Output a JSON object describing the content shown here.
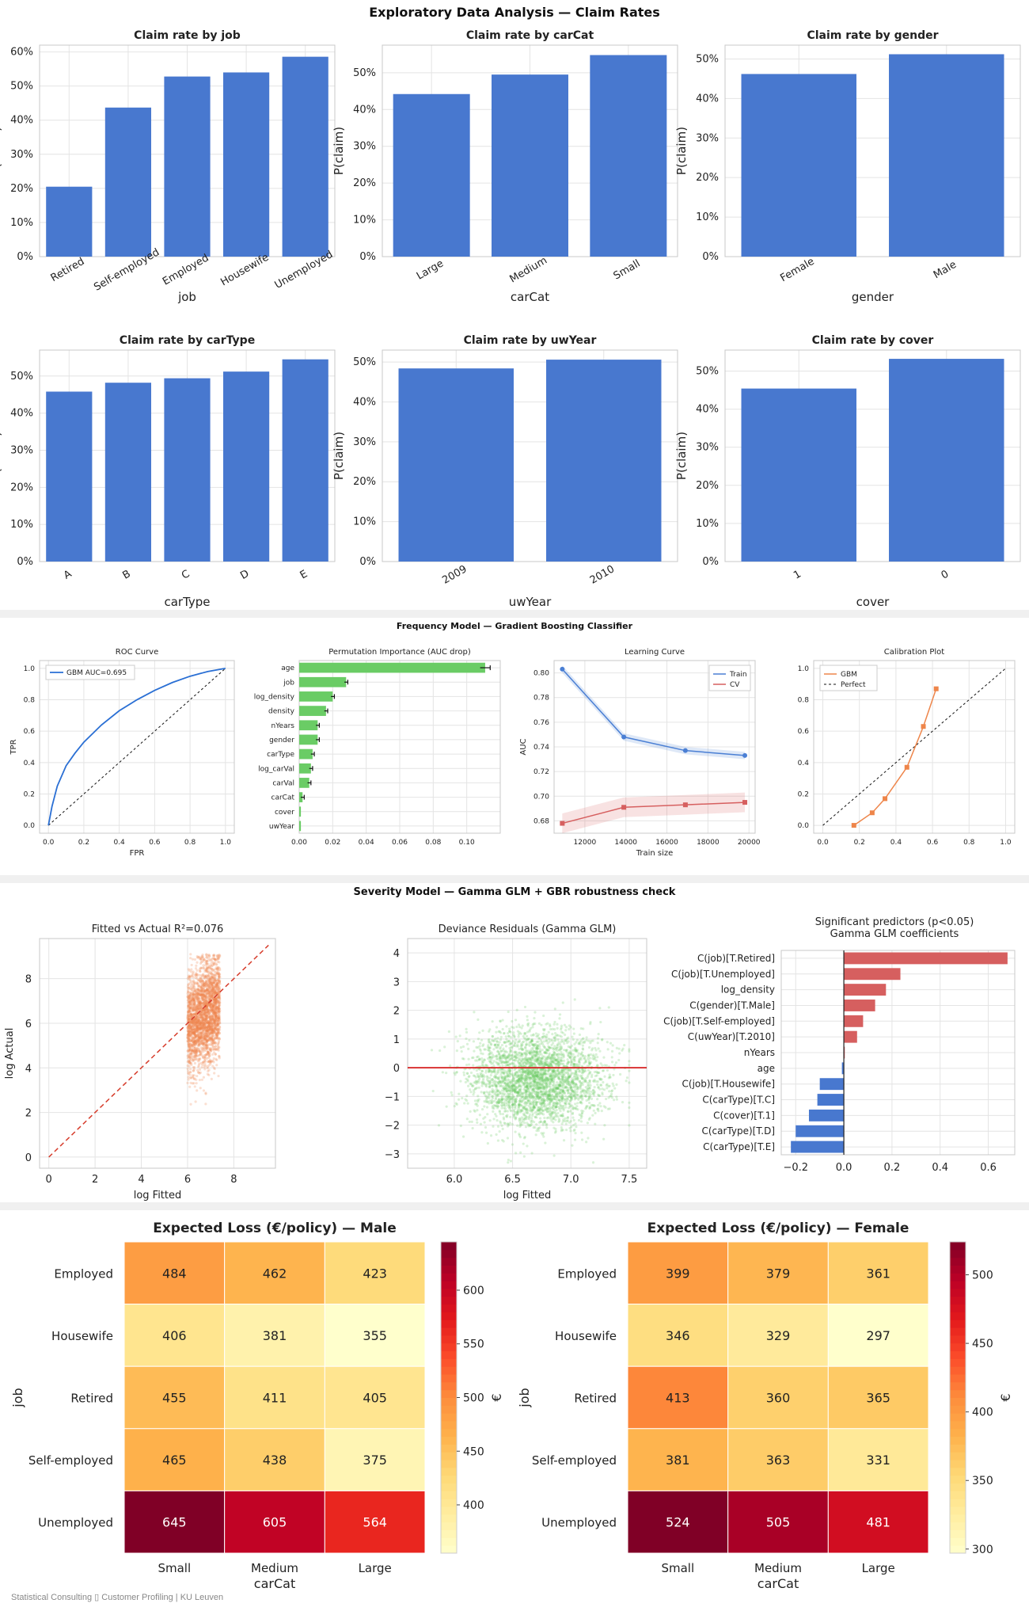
{
  "sections": {
    "eda_title": "Exploratory Data Analysis — Claim Rates",
    "freq_title": "Frequency Model — Gradient Boosting Classifier",
    "sev_title": "Severity Model — Gamma GLM + GBR robustness check"
  },
  "footer": "Statistical Consulting ▯ Customer Profiling | KU Leuven",
  "colors": {
    "bar_blue": "#4878cf",
    "green": "#6acc65",
    "red": "#d65f5f",
    "orange": "#ee854a",
    "roc": "#2a6fd4",
    "section_band": "#f0f0f0"
  },
  "chart_data": [
    {
      "type": "bar",
      "title": "Claim rate by job",
      "xlabel": "job",
      "ylabel": "P(claim)",
      "categories": [
        "Retired",
        "Self-employed",
        "Employed",
        "Housewife",
        "Unemployed"
      ],
      "values": [
        0.205,
        0.437,
        0.528,
        0.54,
        0.586
      ],
      "ylim": [
        0,
        0.62
      ],
      "yticks": [
        0,
        0.1,
        0.2,
        0.3,
        0.4,
        0.5,
        0.6
      ],
      "ytick_labels": [
        "0%",
        "10%",
        "20%",
        "30%",
        "40%",
        "50%",
        "60%"
      ],
      "grid": true
    },
    {
      "type": "bar",
      "title": "Claim rate by carCat",
      "xlabel": "carCat",
      "ylabel": "P(claim)",
      "categories": [
        "Large",
        "Medium",
        "Small"
      ],
      "values": [
        0.442,
        0.495,
        0.548
      ],
      "ylim": [
        0,
        0.575
      ],
      "yticks": [
        0,
        0.1,
        0.2,
        0.3,
        0.4,
        0.5
      ],
      "ytick_labels": [
        "0%",
        "10%",
        "20%",
        "30%",
        "40%",
        "50%"
      ],
      "grid": true
    },
    {
      "type": "bar",
      "title": "Claim rate by gender",
      "xlabel": "gender",
      "ylabel": "P(claim)",
      "categories": [
        "Female",
        "Male"
      ],
      "values": [
        0.462,
        0.512
      ],
      "ylim": [
        0,
        0.535
      ],
      "yticks": [
        0,
        0.1,
        0.2,
        0.3,
        0.4,
        0.5
      ],
      "ytick_labels": [
        "0%",
        "10%",
        "20%",
        "30%",
        "40%",
        "50%"
      ],
      "grid": true
    },
    {
      "type": "bar",
      "title": "Claim rate by carType",
      "xlabel": "carType",
      "ylabel": "P(claim)",
      "categories": [
        "A",
        "B",
        "C",
        "D",
        "E"
      ],
      "values": [
        0.458,
        0.482,
        0.494,
        0.512,
        0.545
      ],
      "ylim": [
        0,
        0.57
      ],
      "yticks": [
        0,
        0.1,
        0.2,
        0.3,
        0.4,
        0.5
      ],
      "ytick_labels": [
        "0%",
        "10%",
        "20%",
        "30%",
        "40%",
        "50%"
      ],
      "grid": true
    },
    {
      "type": "bar",
      "title": "Claim rate by uwYear",
      "xlabel": "uwYear",
      "ylabel": "P(claim)",
      "categories": [
        "2009",
        "2010"
      ],
      "values": [
        0.484,
        0.506
      ],
      "ylim": [
        0,
        0.53
      ],
      "yticks": [
        0,
        0.1,
        0.2,
        0.3,
        0.4,
        0.5
      ],
      "ytick_labels": [
        "0%",
        "10%",
        "20%",
        "30%",
        "40%",
        "50%"
      ],
      "grid": true
    },
    {
      "type": "bar",
      "title": "Claim rate by cover",
      "xlabel": "cover",
      "ylabel": "P(claim)",
      "categories": [
        "1",
        "0"
      ],
      "values": [
        0.454,
        0.532
      ],
      "ylim": [
        0,
        0.555
      ],
      "yticks": [
        0,
        0.1,
        0.2,
        0.3,
        0.4,
        0.5
      ],
      "ytick_labels": [
        "0%",
        "10%",
        "20%",
        "30%",
        "40%",
        "50%"
      ],
      "grid": true
    },
    {
      "type": "line",
      "title": "ROC Curve",
      "xlabel": "FPR",
      "ylabel": "TPR",
      "legend": "top-left",
      "xlim": [
        0,
        1
      ],
      "ylim": [
        0,
        1
      ],
      "ticks": [
        0,
        0.2,
        0.4,
        0.6,
        0.8,
        1.0
      ],
      "tick_labels": [
        "0.0",
        "0.2",
        "0.4",
        "0.6",
        "0.8",
        "1.0"
      ],
      "series": [
        {
          "name": "GBM AUC=0.695",
          "x": [
            0,
            0.02,
            0.05,
            0.1,
            0.15,
            0.2,
            0.3,
            0.4,
            0.5,
            0.6,
            0.7,
            0.8,
            0.9,
            1
          ],
          "y": [
            0,
            0.12,
            0.25,
            0.38,
            0.46,
            0.53,
            0.64,
            0.73,
            0.8,
            0.86,
            0.91,
            0.95,
            0.98,
            1
          ]
        }
      ],
      "reference_line": true
    },
    {
      "type": "bar",
      "orientation": "horizontal",
      "title": "Permutation Importance (AUC drop)",
      "categories": [
        "age",
        "job",
        "log_density",
        "density",
        "nYears",
        "gender",
        "carType",
        "log_carVal",
        "carVal",
        "carCat",
        "cover",
        "uwYear"
      ],
      "values": [
        0.111,
        0.028,
        0.02,
        0.016,
        0.011,
        0.011,
        0.008,
        0.007,
        0.006,
        0.002,
        0.001,
        0.001
      ],
      "errors": [
        0.003,
        0.001,
        0.001,
        0.001,
        0.001,
        0.001,
        0.001,
        0.001,
        0.001,
        0.001,
        0,
        0
      ],
      "xlim": [
        0,
        0.12
      ],
      "ticks": [
        0,
        0.02,
        0.04,
        0.06,
        0.08,
        0.1
      ],
      "tick_labels": [
        "0.00",
        "0.02",
        "0.04",
        "0.06",
        "0.08",
        "0.10"
      ],
      "grid": true
    },
    {
      "type": "line",
      "title": "Learning Curve",
      "xlabel": "Train size",
      "ylabel": "AUC",
      "legend": "top-right",
      "xlim": [
        10500,
        20300
      ],
      "ylim": [
        0.67,
        0.81
      ],
      "xticks": [
        12000,
        14000,
        16000,
        18000,
        20000
      ],
      "yticks": [
        0.68,
        0.7,
        0.72,
        0.74,
        0.76,
        0.78,
        0.8
      ],
      "ytick_labels": [
        "0.68",
        "0.70",
        "0.72",
        "0.74",
        "0.76",
        "0.78",
        "0.80"
      ],
      "series": [
        {
          "name": "Train",
          "x": [
            10900,
            13900,
            16900,
            19800
          ],
          "y": [
            0.803,
            0.748,
            0.737,
            0.733
          ],
          "band": 0.003
        },
        {
          "name": "CV",
          "x": [
            10900,
            13900,
            16900,
            19800
          ],
          "y": [
            0.678,
            0.691,
            0.693,
            0.695
          ],
          "band": 0.008
        }
      ]
    },
    {
      "type": "line",
      "title": "Calibration Plot",
      "legend": "top-left",
      "xlim": [
        -0.05,
        1.05
      ],
      "ylim": [
        -0.05,
        1.05
      ],
      "ticks": [
        0,
        0.2,
        0.4,
        0.6,
        0.8,
        1.0
      ],
      "tick_labels": [
        "0.0",
        "0.2",
        "0.4",
        "0.6",
        "0.8",
        "1.0"
      ],
      "series": [
        {
          "name": "GBM",
          "x": [
            0.17,
            0.27,
            0.34,
            0.46,
            0.55,
            0.62
          ],
          "y": [
            0,
            0.08,
            0.17,
            0.37,
            0.63,
            0.87
          ]
        },
        {
          "name": "Perfect",
          "x": [
            0,
            1
          ],
          "y": [
            0,
            1
          ]
        }
      ]
    },
    {
      "type": "scatter",
      "title": "Fitted vs Actual  R²=0.076",
      "xlabel": "log Fitted",
      "ylabel": "log Actual",
      "xlim": [
        -0.4,
        9.8
      ],
      "ylim": [
        -0.5,
        9.8
      ],
      "xticks": [
        0,
        2,
        4,
        6,
        8
      ],
      "yticks": [
        0,
        2,
        4,
        6,
        8
      ],
      "x_range": [
        6.0,
        7.4
      ],
      "y_mean": 6.35,
      "y_sd": 1.15,
      "reference_line": true
    },
    {
      "type": "scatter",
      "title": "Deviance Residuals (Gamma GLM)",
      "xlabel": "log Fitted",
      "xlim": [
        5.6,
        7.65
      ],
      "ylim": [
        -3.5,
        4.5
      ],
      "xticks": [
        6.0,
        6.5,
        7.0,
        7.5
      ],
      "xtick_labels": [
        "6.0",
        "6.5",
        "7.0",
        "7.5"
      ],
      "yticks": [
        -3,
        -2,
        -1,
        0,
        1,
        2,
        3,
        4
      ],
      "x_mean": 6.7,
      "x_sd": 0.28,
      "y_mean": -0.4,
      "y_sd": 0.85,
      "zero_line": true
    },
    {
      "type": "bar",
      "orientation": "horizontal",
      "title": "Significant predictors (p<0.05)",
      "subtitle": "Gamma GLM coefficients",
      "categories": [
        "C(job)[T.Retired]",
        "C(job)[T.Unemployed]",
        "log_density",
        "C(gender)[T.Male]",
        "C(job)[T.Self-employed]",
        "C(uwYear)[T.2010]",
        "nYears",
        "age",
        "C(job)[T.Housewife]",
        "C(carType)[T.C]",
        "C(cover)[T.1]",
        "C(carType)[T.D]",
        "C(carType)[T.E]"
      ],
      "values": [
        0.68,
        0.235,
        0.175,
        0.13,
        0.08,
        0.055,
        0.004,
        -0.008,
        -0.1,
        -0.11,
        -0.145,
        -0.2,
        -0.22
      ],
      "xlim": [
        -0.26,
        0.71
      ],
      "ticks": [
        -0.2,
        0,
        0.2,
        0.4,
        0.6
      ],
      "tick_labels": [
        "−0.2",
        "0.0",
        "0.2",
        "0.4",
        "0.6"
      ]
    },
    {
      "type": "heatmap",
      "title": "Expected Loss (€/policy) — Male",
      "xlabel": "carCat",
      "ylabel": "job",
      "x": [
        "Small",
        "Medium",
        "Large"
      ],
      "y": [
        "Employed",
        "Housewife",
        "Retired",
        "Self-employed",
        "Unemployed"
      ],
      "values": [
        [
          484,
          462,
          423
        ],
        [
          406,
          381,
          355
        ],
        [
          455,
          411,
          405
        ],
        [
          465,
          438,
          375
        ],
        [
          645,
          605,
          564
        ]
      ],
      "vmin": 355,
      "vmax": 645,
      "colorbar_label": "€",
      "colorbar_ticks": [
        400,
        450,
        500,
        550,
        600
      ]
    },
    {
      "type": "heatmap",
      "title": "Expected Loss (€/policy) — Female",
      "xlabel": "carCat",
      "ylabel": "job",
      "x": [
        "Small",
        "Medium",
        "Large"
      ],
      "y": [
        "Employed",
        "Housewife",
        "Retired",
        "Self-employed",
        "Unemployed"
      ],
      "values": [
        [
          399,
          379,
          361
        ],
        [
          346,
          329,
          297
        ],
        [
          413,
          360,
          365
        ],
        [
          381,
          363,
          331
        ],
        [
          524,
          505,
          481
        ]
      ],
      "vmin": 297,
      "vmax": 524,
      "colorbar_label": "€",
      "colorbar_ticks": [
        300,
        350,
        400,
        450,
        500
      ]
    }
  ]
}
